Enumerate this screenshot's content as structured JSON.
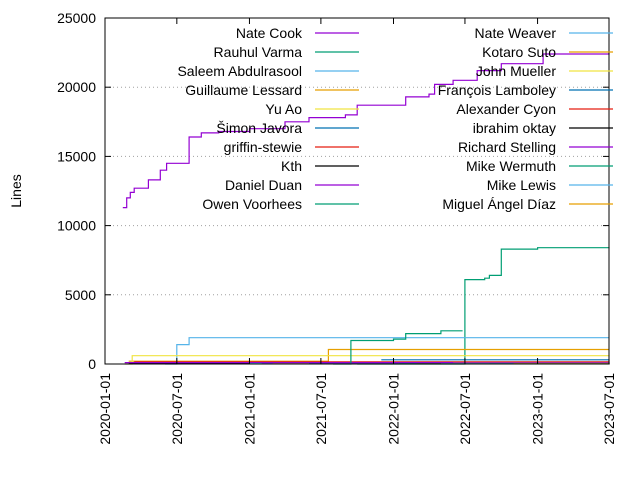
{
  "chart_data": {
    "type": "line",
    "title": "",
    "xlabel": "",
    "ylabel": "Lines",
    "ylim": [
      0,
      25000
    ],
    "xlim": [
      "2020-01-01",
      "2023-07-01"
    ],
    "yticks": [
      0,
      5000,
      10000,
      15000,
      20000,
      25000
    ],
    "xticks": [
      "2020-01-01",
      "2020-07-01",
      "2021-01-01",
      "2021-07-01",
      "2022-01-01",
      "2022-07-01",
      "2023-01-01",
      "2023-07-01"
    ],
    "grid": true,
    "legend": "top",
    "series": [
      {
        "name": "Nate Cook",
        "color": "#9400d3",
        "points": [
          [
            "2020-02-15",
            11300
          ],
          [
            "2020-02-25",
            12000
          ],
          [
            "2020-03-05",
            12400
          ],
          [
            "2020-03-15",
            12700
          ],
          [
            "2020-04-20",
            13300
          ],
          [
            "2020-05-20",
            14000
          ],
          [
            "2020-06-05",
            14500
          ],
          [
            "2020-08-01",
            16400
          ],
          [
            "2020-09-01",
            16700
          ],
          [
            "2020-10-15",
            16800
          ],
          [
            "2021-01-01",
            17000
          ],
          [
            "2021-04-01",
            17500
          ],
          [
            "2021-06-01",
            17800
          ],
          [
            "2021-09-01",
            18000
          ],
          [
            "2021-10-01",
            18700
          ],
          [
            "2022-02-01",
            19300
          ],
          [
            "2022-04-01",
            19500
          ],
          [
            "2022-04-15",
            20200
          ],
          [
            "2022-06-01",
            20500
          ],
          [
            "2022-08-01",
            21200
          ],
          [
            "2022-10-01",
            21700
          ],
          [
            "2023-01-15",
            22400
          ],
          [
            "2023-07-01",
            22500
          ]
        ]
      },
      {
        "name": "Rauhul Varma",
        "color": "#009e73",
        "points": [
          [
            "2021-10-01",
            0
          ],
          [
            "2022-06-25",
            0
          ],
          [
            "2022-07-01",
            6100
          ],
          [
            "2022-08-20",
            6200
          ],
          [
            "2022-09-01",
            6400
          ],
          [
            "2022-10-01",
            8300
          ],
          [
            "2023-01-01",
            8400
          ],
          [
            "2023-07-01",
            8450
          ]
        ]
      },
      {
        "name": "Saleem Abdulrasool",
        "color": "#56b4e9",
        "points": [
          [
            "2020-06-01",
            0
          ],
          [
            "2020-07-01",
            1400
          ],
          [
            "2020-08-01",
            1900
          ],
          [
            "2021-09-01",
            1900
          ],
          [
            "2023-07-01",
            1900
          ]
        ]
      },
      {
        "name": "Guillaume Lessard",
        "color": "#e69f00",
        "points": [
          [
            "2020-03-01",
            200
          ],
          [
            "2021-07-15",
            200
          ],
          [
            "2021-07-20",
            1050
          ],
          [
            "2023-07-01",
            1050
          ]
        ]
      },
      {
        "name": "Yu Ao",
        "color": "#f0e442",
        "points": [
          [
            "2020-02-20",
            0
          ],
          [
            "2020-03-10",
            600
          ],
          [
            "2023-07-01",
            650
          ]
        ]
      },
      {
        "name": "Šimon Javora",
        "color": "#0072b2",
        "points": [
          [
            "2021-12-01",
            300
          ],
          [
            "2023-07-01",
            350
          ]
        ]
      },
      {
        "name": "griffin-stewie",
        "color": "#e51e10",
        "points": [
          [
            "2020-03-15",
            150
          ],
          [
            "2023-07-01",
            250
          ]
        ]
      },
      {
        "name": "Kth",
        "color": "#000000",
        "points": [
          [
            "2020-03-01",
            60
          ],
          [
            "2023-07-01",
            100
          ]
        ]
      },
      {
        "name": "Daniel Duan",
        "color": "#9400d3",
        "points": [
          [
            "2020-02-20",
            100
          ],
          [
            "2023-07-01",
            140
          ]
        ]
      },
      {
        "name": "Owen Voorhees",
        "color": "#009e73",
        "points": [
          [
            "2021-08-01",
            0
          ],
          [
            "2021-09-15",
            1700
          ],
          [
            "2022-01-01",
            1800
          ],
          [
            "2022-02-01",
            2200
          ],
          [
            "2022-05-01",
            2400
          ],
          [
            "2022-06-25",
            2400
          ]
        ]
      },
      {
        "name": "Nate Weaver",
        "color": "#56b4e9",
        "points": [
          [
            "2021-01-01",
            30
          ],
          [
            "2023-07-01",
            80
          ]
        ]
      },
      {
        "name": "Kotaro Suto",
        "color": "#e69f00",
        "points": [
          [
            "2022-06-01",
            40
          ],
          [
            "2023-07-01",
            60
          ]
        ]
      },
      {
        "name": "John Mueller",
        "color": "#f0e442",
        "points": [
          [
            "2021-03-01",
            20
          ],
          [
            "2023-07-01",
            40
          ]
        ]
      },
      {
        "name": "François Lamboley",
        "color": "#0072b2",
        "points": [
          [
            "2021-06-01",
            20
          ],
          [
            "2023-07-01",
            30
          ]
        ]
      },
      {
        "name": "Alexander Cyon",
        "color": "#e51e10",
        "points": [
          [
            "2022-03-01",
            20
          ],
          [
            "2023-07-01",
            30
          ]
        ]
      },
      {
        "name": "ibrahim oktay",
        "color": "#000000",
        "points": [
          [
            "2022-09-01",
            20
          ],
          [
            "2023-07-01",
            25
          ]
        ]
      },
      {
        "name": "Richard Stelling",
        "color": "#9400d3",
        "points": [
          [
            "2021-02-01",
            10
          ],
          [
            "2023-07-01",
            15
          ]
        ]
      },
      {
        "name": "Mike Wermuth",
        "color": "#009e73",
        "points": [
          [
            "2022-01-15",
            10
          ],
          [
            "2023-07-01",
            15
          ]
        ]
      },
      {
        "name": "Mike Lewis",
        "color": "#56b4e9",
        "points": [
          [
            "2022-05-01",
            5
          ],
          [
            "2023-07-01",
            10
          ]
        ]
      },
      {
        "name": "Miguel Ángel Díaz",
        "color": "#e69f00",
        "points": [
          [
            "2022-11-01",
            5
          ],
          [
            "2023-07-01",
            10
          ]
        ]
      }
    ]
  }
}
